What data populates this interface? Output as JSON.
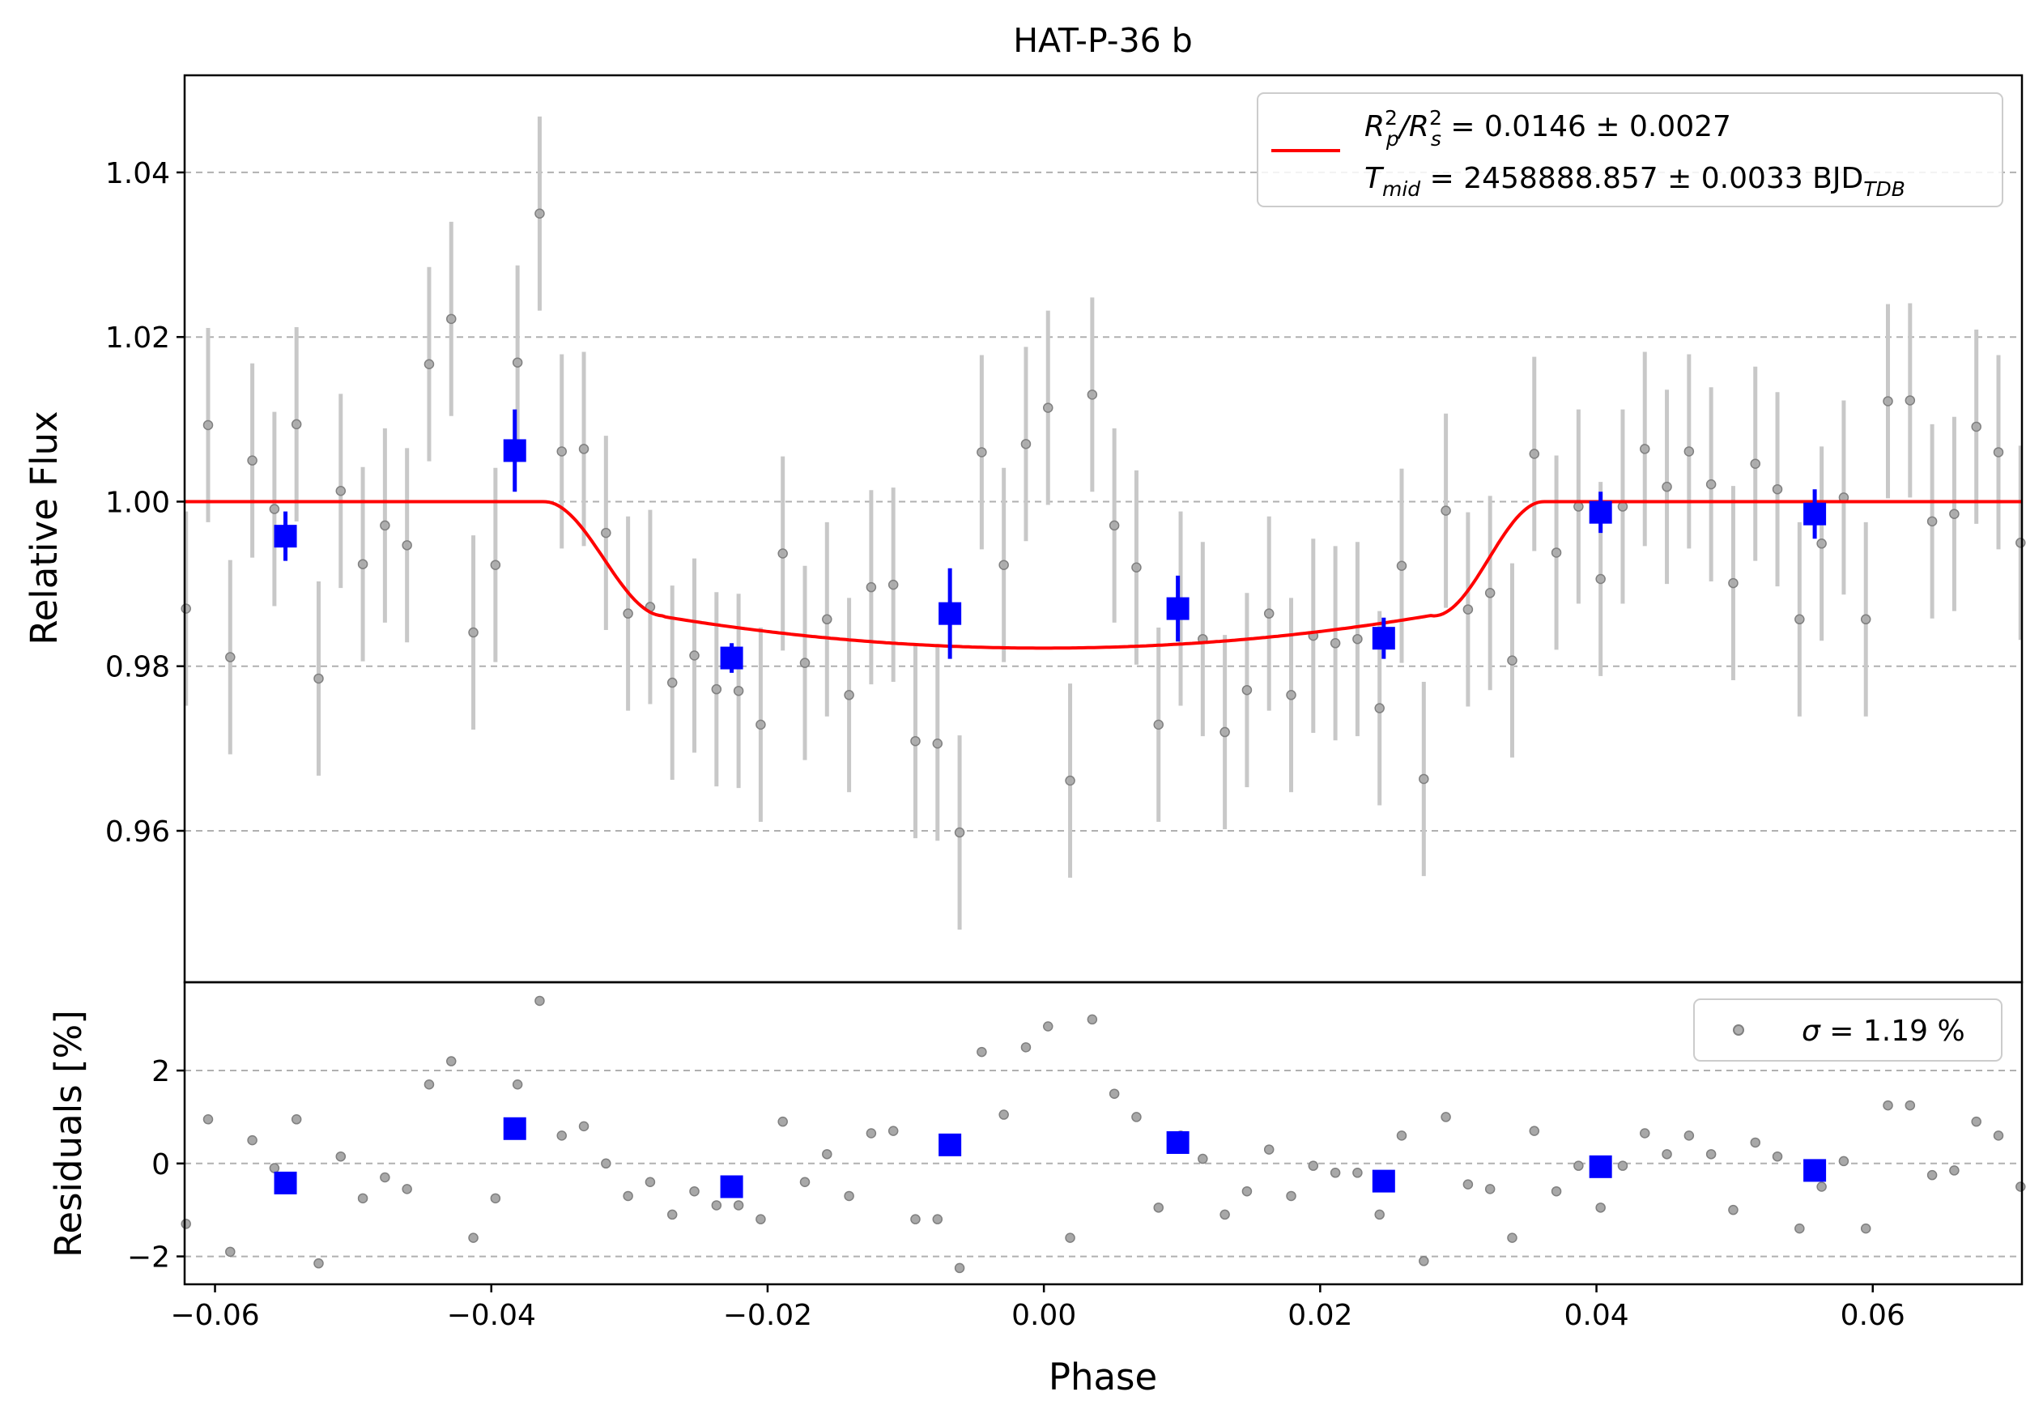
{
  "title": "HAT-P-36 b",
  "chart_data": [
    {
      "type": "scatter",
      "panel": "top",
      "title": "HAT-P-36 b",
      "xlabel": "",
      "ylabel": "Relative Flux",
      "xlim": [
        -0.0622,
        0.0708
      ],
      "ylim": [
        0.9416,
        1.0518
      ],
      "grid": "y dashed",
      "yticks": [
        0.96,
        0.98,
        1.0,
        1.02,
        1.04
      ],
      "ytick_labels": [
        "0.96",
        "0.98",
        "1.00",
        "1.02",
        "1.04"
      ],
      "legend": {
        "placement": "top-right",
        "line1_prefix": "R",
        "line1_sub1": "p",
        "line1_sup1": "2",
        "line1_mid": "/R",
        "line1_sub2": "s",
        "line1_sup2": "2",
        "line1_value": " = 0.0146 ± 0.0027",
        "line2_prefix": "T",
        "line2_sub": "mid",
        "line2_value": " = 2458888.857 ± 0.0033 BJD",
        "line2_unit_sub": "TDB"
      },
      "colors": {
        "raw": "#808080",
        "raw_err": "#c8c8c8",
        "binned": "#0000ff",
        "model": "#ff0000"
      },
      "series": [
        {
          "kind": "raw",
          "x": [
            -0.0621,
            -0.0605,
            -0.0589,
            -0.0573,
            -0.0557,
            -0.0541,
            -0.0525,
            -0.0509,
            -0.0493,
            -0.0477,
            -0.0461,
            -0.0445,
            -0.0429,
            -0.0413,
            -0.0397,
            -0.0381,
            -0.0365,
            -0.0349,
            -0.0333,
            -0.0317,
            -0.0301,
            -0.0285,
            -0.0269,
            -0.0253,
            -0.0237,
            -0.0221,
            -0.0205,
            -0.0189,
            -0.0173,
            -0.0157,
            -0.0141,
            -0.0125,
            -0.0109,
            -0.0093,
            -0.0077,
            -0.0061,
            -0.0045,
            -0.0029,
            -0.0013,
            0.0003,
            0.0019,
            0.0035,
            0.0051,
            0.0067,
            0.0083,
            0.0099,
            0.0115,
            0.0131,
            0.0147,
            0.0163,
            0.0179,
            0.0195,
            0.0211,
            0.0227,
            0.0243,
            0.0259,
            0.0275,
            0.0291,
            0.0307,
            0.0323,
            0.0339,
            0.0355,
            0.0371,
            0.0387,
            0.0403,
            0.0419,
            0.0435,
            0.0451,
            0.0467,
            0.0483,
            0.0499,
            0.0515,
            0.0531,
            0.0547,
            0.0563,
            0.0579,
            0.0595,
            0.0611,
            0.0627,
            0.0643,
            0.0659,
            0.0675,
            0.0691,
            0.0707
          ],
          "y": [
            0.987,
            1.0093,
            0.9811,
            1.005,
            0.9991,
            1.0094,
            0.9785,
            1.0013,
            0.9924,
            0.9971,
            0.9947,
            1.0167,
            1.0222,
            0.9841,
            0.9923,
            1.0169,
            1.035,
            1.0061,
            1.0064,
            0.9962,
            0.9864,
            0.9872,
            0.978,
            0.9813,
            0.9772,
            0.977,
            0.9729,
            0.9937,
            0.9804,
            0.9857,
            0.9765,
            0.9896,
            0.9899,
            0.9709,
            0.9706,
            0.9598,
            1.006,
            0.9923,
            1.007,
            1.0114,
            0.9661,
            1.013,
            0.9971,
            0.992,
            0.9729,
            0.987,
            0.9833,
            0.972,
            0.9771,
            0.9864,
            0.9765,
            0.9837,
            0.9828,
            0.9833,
            0.9749,
            0.9922,
            0.9663,
            0.9989,
            0.9869,
            0.9889,
            0.9807,
            1.0058,
            0.9938,
            0.9994,
            0.9906,
            0.9994,
            1.0064,
            1.0018,
            1.0061,
            1.0021,
            0.9901,
            1.0046,
            1.0015,
            0.9857,
            0.9949,
            1.0005,
            0.9857,
            1.0122,
            1.0123,
            0.9976,
            0.9985,
            1.0091,
            1.006,
            0.995
          ],
          "err": 0.0118
        },
        {
          "kind": "binned",
          "x": [
            -0.0549,
            -0.0383,
            -0.0226,
            -0.0068,
            0.0097,
            0.0246,
            0.0403,
            0.0558
          ],
          "y": [
            0.9958,
            1.0062,
            0.981,
            0.9864,
            0.987,
            0.9834,
            0.9987,
            0.9985
          ],
          "err": [
            0.003,
            0.005,
            0.0018,
            0.0055,
            0.004,
            0.0025,
            0.0025,
            0.003
          ]
        },
        {
          "kind": "model",
          "name": "",
          "depth": 0.0178,
          "t1": -0.0362,
          "t2": -0.0275,
          "t3": 0.0282,
          "t4": 0.0362,
          "baseline": 1.0
        }
      ]
    },
    {
      "type": "scatter",
      "panel": "bottom",
      "xlabel": "Phase",
      "ylabel": "Residuals [%]",
      "xlim": [
        -0.0622,
        0.0708
      ],
      "ylim": [
        -2.6,
        3.9
      ],
      "grid": "y dashed",
      "yticks": [
        -2,
        0,
        2
      ],
      "ytick_labels": [
        "−2",
        "0",
        "2"
      ],
      "xticks": [
        -0.06,
        -0.04,
        -0.02,
        0.0,
        0.02,
        0.04,
        0.06
      ],
      "xtick_labels": [
        "−0.06",
        "−0.04",
        "−0.02",
        "0.00",
        "0.02",
        "0.04",
        "0.06"
      ],
      "legend": {
        "placement": "top-right",
        "label_symbol": "σ",
        "label_value": " = 1.19 %"
      },
      "series": [
        {
          "kind": "raw_residuals",
          "x": [
            -0.0621,
            -0.0605,
            -0.0589,
            -0.0573,
            -0.0557,
            -0.0541,
            -0.0525,
            -0.0509,
            -0.0493,
            -0.0477,
            -0.0461,
            -0.0445,
            -0.0429,
            -0.0413,
            -0.0397,
            -0.0381,
            -0.0365,
            -0.0349,
            -0.0333,
            -0.0317,
            -0.0301,
            -0.0285,
            -0.0269,
            -0.0253,
            -0.0237,
            -0.0221,
            -0.0205,
            -0.0189,
            -0.0173,
            -0.0157,
            -0.0141,
            -0.0125,
            -0.0109,
            -0.0093,
            -0.0077,
            -0.0061,
            -0.0045,
            -0.0029,
            -0.0013,
            0.0003,
            0.0019,
            0.0035,
            0.0051,
            0.0067,
            0.0083,
            0.0099,
            0.0115,
            0.0131,
            0.0147,
            0.0163,
            0.0179,
            0.0195,
            0.0211,
            0.0227,
            0.0243,
            0.0259,
            0.0275,
            0.0291,
            0.0307,
            0.0323,
            0.0339,
            0.0355,
            0.0371,
            0.0387,
            0.0403,
            0.0419,
            0.0435,
            0.0451,
            0.0467,
            0.0483,
            0.0499,
            0.0515,
            0.0531,
            0.0547,
            0.0563,
            0.0579,
            0.0595,
            0.0611,
            0.0627,
            0.0643,
            0.0659,
            0.0675,
            0.0691,
            0.0707
          ],
          "y": [
            -1.3,
            0.95,
            -1.9,
            0.5,
            -0.1,
            0.95,
            -2.15,
            0.15,
            -0.75,
            -0.3,
            -0.55,
            1.7,
            2.2,
            -1.6,
            -0.75,
            1.7,
            3.5,
            0.6,
            0.8,
            0.0,
            -0.7,
            -0.4,
            -1.1,
            -0.6,
            -0.9,
            -0.9,
            -1.2,
            0.9,
            -0.4,
            0.2,
            -0.7,
            0.65,
            0.7,
            -1.2,
            -1.2,
            -2.25,
            2.4,
            1.05,
            2.5,
            2.95,
            -1.6,
            3.1,
            1.5,
            1.0,
            -0.95,
            0.6,
            0.1,
            -1.1,
            -0.6,
            0.3,
            -0.7,
            -0.05,
            -0.2,
            -0.2,
            -1.1,
            0.6,
            -2.1,
            1.0,
            -0.45,
            -0.55,
            -1.6,
            0.7,
            -0.6,
            -0.05,
            -0.95,
            -0.05,
            0.65,
            0.2,
            0.6,
            0.2,
            -1.0,
            0.45,
            0.15,
            -1.4,
            -0.5,
            0.05,
            -1.4,
            1.25,
            1.25,
            -0.25,
            -0.15,
            0.9,
            0.6,
            -0.5
          ]
        },
        {
          "kind": "binned_residuals",
          "x": [
            -0.0549,
            -0.0383,
            -0.0226,
            -0.0068,
            0.0097,
            0.0246,
            0.0403,
            0.0558
          ],
          "y": [
            -0.42,
            0.75,
            -0.5,
            0.4,
            0.45,
            -0.38,
            -0.07,
            -0.15
          ]
        }
      ]
    }
  ]
}
